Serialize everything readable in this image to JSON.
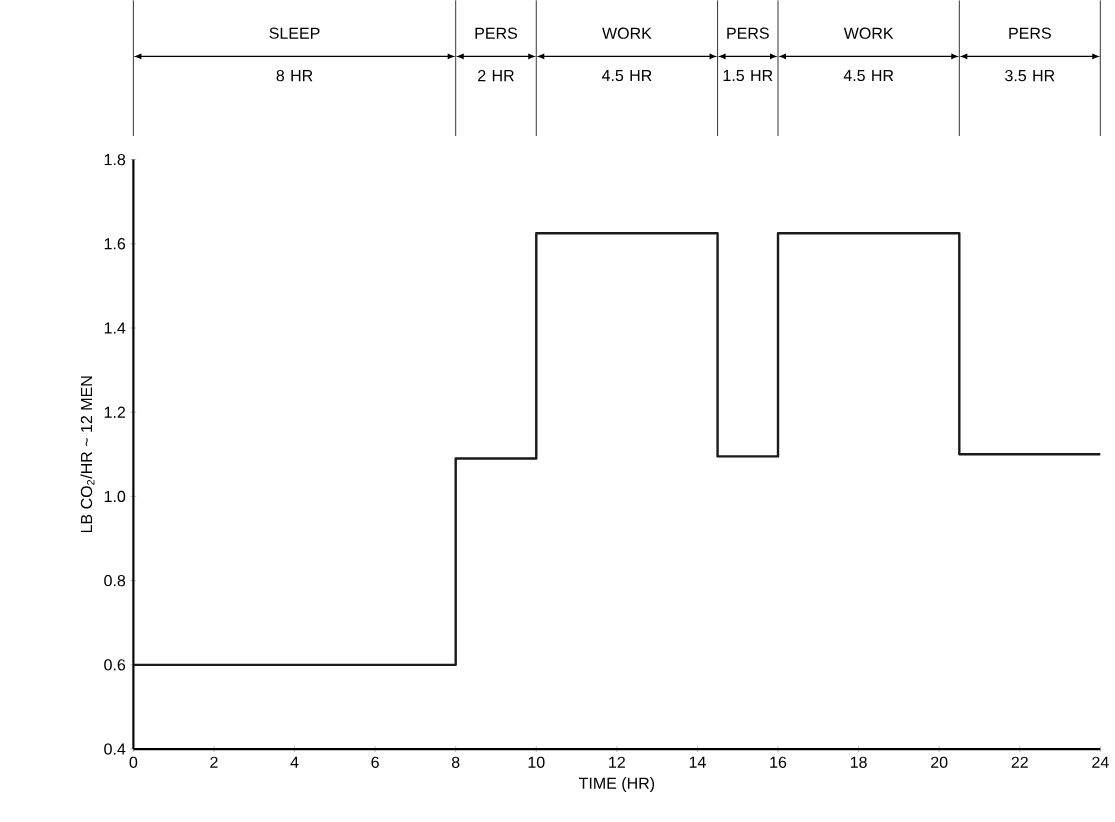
{
  "chart_data": {
    "type": "step",
    "xlabel": "TIME (HR)",
    "ylabel": "LB CO$_{2}$/HR ~ 12 MEN",
    "x": [
      0,
      8,
      10,
      14.5,
      16,
      20.5,
      24
    ],
    "values": [
      0.6,
      1.09,
      1.625,
      1.095,
      1.625,
      1.1,
      1.1
    ],
    "color": "#1a1a1a",
    "xlim": [
      0,
      24
    ],
    "xticks": [
      0,
      2,
      4,
      6,
      8,
      10,
      12,
      14,
      16,
      18,
      20,
      22,
      24
    ],
    "ylim": [
      0.4,
      1.8
    ],
    "yticks": [
      0.4,
      0.6,
      0.8,
      {
        "value": 1.0,
        "label": "1.0"
      },
      1.2,
      1.4,
      1.6,
      1.8
    ],
    "annotations": [
      "SLEEP",
      "8 HR",
      "PERS",
      "2 HR",
      "WORK",
      "4.5 HR",
      "PERS",
      "1.5 HR",
      "WORK",
      "4.5 HR",
      "PERS",
      "3.5 HR"
    ],
    "grid": false,
    "marker": "none",
    "line_style": "solid"
  }
}
